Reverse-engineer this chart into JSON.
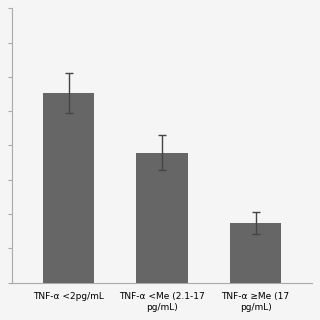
{
  "categories": [
    "TNF-α <2pg/mL",
    "TNF-α <Me (2.1-17\npg/mL)",
    "TNF-α ≥Me (17\npg/mL)"
  ],
  "values": [
    3.8,
    2.6,
    1.2
  ],
  "errors": [
    0.4,
    0.35,
    0.22
  ],
  "bar_color": "#666666",
  "bar_width": 0.55,
  "ylim": [
    0,
    5.5
  ],
  "background_color": "#f5f5f5",
  "tick_label_fontsize": 6.5,
  "axis_linewidth": 0.8,
  "capsize": 3,
  "error_linewidth": 1.0,
  "error_color": "#444444",
  "ytick_count": 9,
  "spine_color": "#aaaaaa"
}
